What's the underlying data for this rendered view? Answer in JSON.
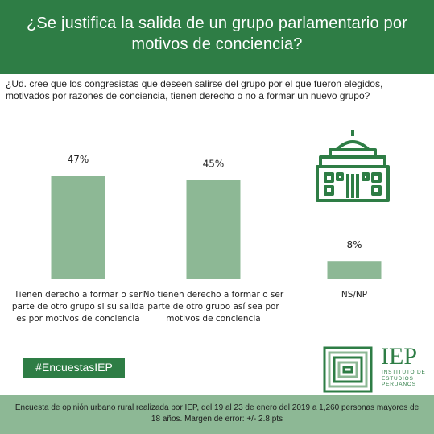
{
  "header": {
    "title": "¿Se justifica la salida de un grupo parlamentario por motivos de conciencia?"
  },
  "question": "¿Ud. cree que los congresistas que deseen salirse del grupo por el que fueron elegidos, motivados por razones de conciencia, tienen derecho o no a formar un nuevo grupo?",
  "chart_data": {
    "type": "bar",
    "categories": [
      "Tienen derecho a formar o ser parte de otro grupo si su salida es por motivos de conciencia",
      "No tienen derecho a formar o ser parte de otro grupo así sea por motivos de conciencia",
      "NS/NP"
    ],
    "values": [
      47,
      45,
      8
    ],
    "value_labels": [
      "47%",
      "45%",
      "8%"
    ],
    "category_lines": [
      [
        "Tienen derecho a formar o ser",
        "parte de otro grupo si su salida",
        "es por motivos de conciencia"
      ],
      [
        "No tienen derecho a formar o ser",
        "parte de otro grupo así sea por",
        "motivos de conciencia"
      ],
      [
        "NS/NP"
      ]
    ],
    "ylim": [
      0,
      47
    ],
    "grid": false,
    "bar_color": "#8db895"
  },
  "hashtag": "#EncuestasIEP",
  "logo": {
    "name": "IEP",
    "subtitle_lines": [
      "INSTITUTO DE",
      "ESTUDIOS",
      "PERUANOS"
    ]
  },
  "footer": {
    "text": "Encuesta de opinión urbano rural realizada por IEP, del 19 al 23 de enero del 2019 a 1,260 personas mayores de 18 años. Margen de error: +/- 2.8 pts"
  },
  "colors": {
    "brand_green": "#2e7d45",
    "bar_green": "#8db895",
    "footer_green": "#8db895"
  },
  "icons": [
    "congress-building-icon",
    "iep-logo-icon"
  ]
}
